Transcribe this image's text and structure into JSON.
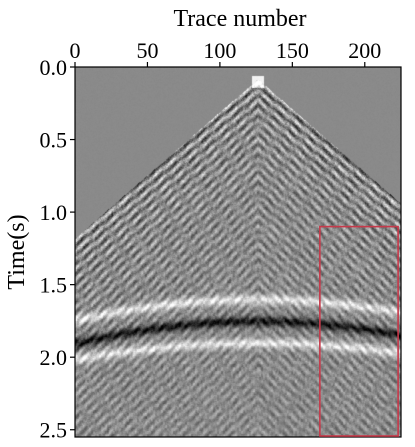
{
  "chart_data": {
    "type": "heatmap",
    "title": "",
    "xlabel": "Trace number",
    "ylabel": "Time(s)",
    "x_axis_position": "top",
    "y_axis_inverted": true,
    "xlim": [
      0,
      225
    ],
    "ylim": [
      0.0,
      2.55
    ],
    "x_ticks": [
      0,
      50,
      100,
      150,
      200
    ],
    "x_tick_labels": [
      "0",
      "50",
      "100",
      "150",
      "200"
    ],
    "y_ticks": [
      0.0,
      0.5,
      1.0,
      1.5,
      2.0,
      2.5
    ],
    "y_tick_labels": [
      "0.0",
      "0.5",
      "1.0",
      "1.5",
      "2.0",
      "2.5"
    ],
    "grid": false,
    "colormap": "gray",
    "background_color": "#8a8a8a",
    "source_trace": 126,
    "direct_arrival_slowness_s_per_trace": 0.0087,
    "reflection_events": [
      {
        "t0": 1.6,
        "curvature": 1.5e-06
      },
      {
        "t0": 1.75,
        "curvature": 1.8e-06
      },
      {
        "t0": 1.9,
        "curvature": 1.4e-06
      }
    ],
    "annotation_box": {
      "x_range": [
        169,
        223
      ],
      "y_range": [
        1.1,
        2.55
      ],
      "color": "#c8394a"
    }
  }
}
